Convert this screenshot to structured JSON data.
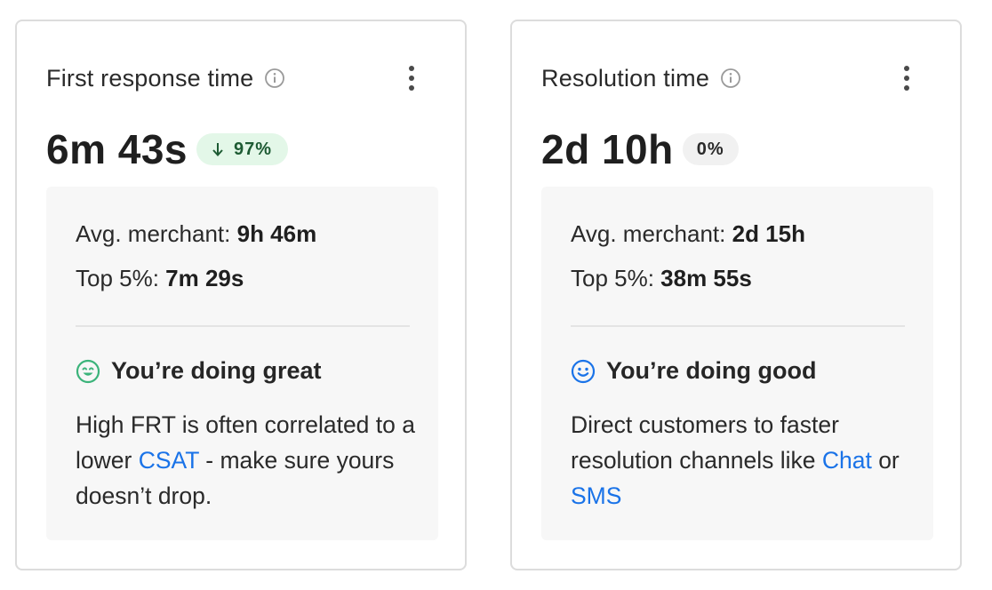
{
  "cards": [
    {
      "title": "First response time",
      "metric": "6m 43s",
      "badge": "97%",
      "avg_label": "Avg. merchant: ",
      "avg_value": "9h 46m",
      "top_label": "Top 5%: ",
      "top_value": "7m 29s",
      "feedback_title": "You’re doing great",
      "desc_part1": "High FRT is often correlated to a lower ",
      "desc_link1": "CSAT",
      "desc_part2": " - make sure yours doesn’t drop.",
      "icon_color": "#3bb37a"
    },
    {
      "title": "Resolution time",
      "metric": "2d 10h",
      "badge": "0%",
      "avg_label": "Avg. merchant: ",
      "avg_value": "2d 15h",
      "top_label": "Top 5%: ",
      "top_value": "38m 55s",
      "feedback_title": "You’re doing good",
      "desc_part1": "Direct customers to faster resolution channels like ",
      "desc_link1": "Chat",
      "desc_part2": " or ",
      "desc_link2": "SMS",
      "icon_color": "#1a73e8"
    }
  ],
  "colors": {
    "link": "#1a73e8",
    "badge_green_bg": "#e3f7e8",
    "badge_grey_bg": "#f1f1f1",
    "panel_bg": "#f7f7f7"
  },
  "icons": {
    "info": "info-circle-icon",
    "menu": "kebab-menu-icon",
    "down_arrow": "arrow-down-icon",
    "great": "smile-grin-icon",
    "good": "smile-icon"
  }
}
